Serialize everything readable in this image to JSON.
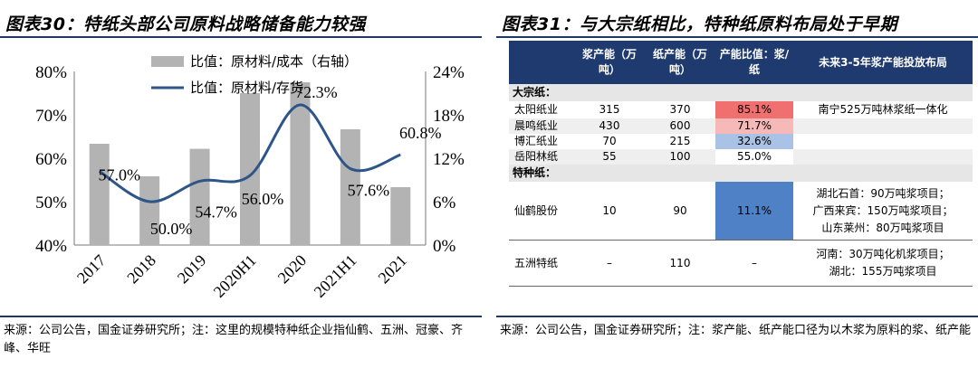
{
  "left": {
    "title": "图表30：特纸头部公司原料战略储备能力较强",
    "source": "来源：公司公告，国金证券研究所；注：这里的规模特种纸企业指仙鹤、五洲、冠豪、齐峰、华旺"
  },
  "right": {
    "title": "图表31：与大宗纸相比，特种纸原料布局处于早期",
    "source": "来源：公司公告，国金证券研究所；注：浆产能、纸产能口径为以木浆为原料的浆、纸产能",
    "table": {
      "headers": [
        "",
        "浆产能（万吨）",
        "纸产能（万吨）",
        "产能比值：浆/纸",
        "未来3-5年浆产能投放布局"
      ],
      "sections": [
        {
          "label": "大宗纸：",
          "rows": [
            {
              "name": "太阳纸业",
              "pulp": "315",
              "paper": "370",
              "ratio": "85.1%",
              "ratio_color": "#f07070",
              "note": "南宁525万吨林浆纸一体化"
            },
            {
              "name": "晨鸣纸业",
              "pulp": "430",
              "paper": "600",
              "ratio": "71.7%",
              "ratio_color": "#f7b8b8",
              "note": ""
            },
            {
              "name": "博汇纸业",
              "pulp": "70",
              "paper": "215",
              "ratio": "32.6%",
              "ratio_color": "#a9c2e6",
              "note": ""
            },
            {
              "name": "岳阳林纸",
              "pulp": "55",
              "paper": "100",
              "ratio": "55.0%",
              "ratio_color": "#ffffff",
              "note": ""
            }
          ]
        },
        {
          "label": "特种纸：",
          "rows": [
            {
              "name": "仙鹤股份",
              "pulp": "10",
              "paper": "90",
              "ratio": "11.1%",
              "ratio_color": "#4f81c7",
              "note_lines": [
                "湖北石首：90万吨浆项目；",
                "广西来宾：150万吨浆项目；",
                "山东莱州：80万吨浆项目"
              ]
            },
            {
              "name": "五洲特纸",
              "pulp": "–",
              "paper": "110",
              "ratio": "–",
              "ratio_color": "#ffffff",
              "note_lines": [
                "河南：30万吨化机浆项目；",
                "湖北：155万吨浆项目"
              ]
            }
          ]
        }
      ]
    }
  },
  "chart_data": {
    "type": "bar",
    "categories": [
      "2017",
      "2018",
      "2019",
      "2020H1",
      "2020",
      "2021H1",
      "2021"
    ],
    "series": [
      {
        "name": "比值：原材料/成本（右轴）",
        "type": "bar",
        "axis": "right",
        "color": "#b3b3b3",
        "values": [
          14.0,
          9.5,
          13.3,
          21.0,
          22.5,
          16.0,
          8.0
        ]
      },
      {
        "name": "比值：原材料/存货",
        "type": "line",
        "axis": "left",
        "color": "#2e5588",
        "values": [
          57.0,
          50.0,
          54.7,
          56.0,
          72.3,
          57.6,
          60.8
        ],
        "labels": [
          "57.0%",
          "50.0%",
          "54.7%",
          "56.0%",
          "72.3%",
          "57.6%",
          "60.8%"
        ]
      }
    ],
    "y_left": {
      "ticks": [
        "40%",
        "50%",
        "60%",
        "70%",
        "80%"
      ],
      "range": [
        40,
        80
      ]
    },
    "y_right": {
      "ticks": [
        "0%",
        "6%",
        "12%",
        "18%",
        "24%"
      ],
      "range": [
        0,
        24
      ]
    },
    "legend": "top-center",
    "grid": false
  }
}
